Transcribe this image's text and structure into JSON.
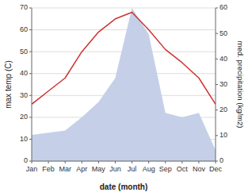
{
  "chart_data": {
    "type": "line",
    "xlabel": "date (month)",
    "ylabel": "max temp (C)",
    "y2label": "med. precipitation (kg/m2)",
    "categories": [
      "Jan",
      "Feb",
      "Mar",
      "Apr",
      "May",
      "Jun",
      "Jul",
      "Aug",
      "Sep",
      "Oct",
      "Nov",
      "Dec"
    ],
    "series": [
      {
        "type": "area",
        "color": "#c5d0e8",
        "values": [
          12,
          13,
          14,
          20,
          27,
          38,
          70,
          58,
          22,
          20,
          22,
          5
        ]
      },
      {
        "type": "line",
        "color": "#cc3333",
        "values": [
          26,
          32,
          38,
          50,
          59,
          65,
          68,
          60,
          51,
          45,
          38,
          26
        ]
      }
    ],
    "ylim": [
      0,
      70
    ],
    "yticks": [
      0,
      10,
      20,
      30,
      40,
      50,
      60,
      70
    ],
    "y2lim": [
      0,
      60
    ],
    "y2ticks": [
      0,
      10,
      20,
      30,
      40,
      50,
      60
    ],
    "grid": true
  }
}
